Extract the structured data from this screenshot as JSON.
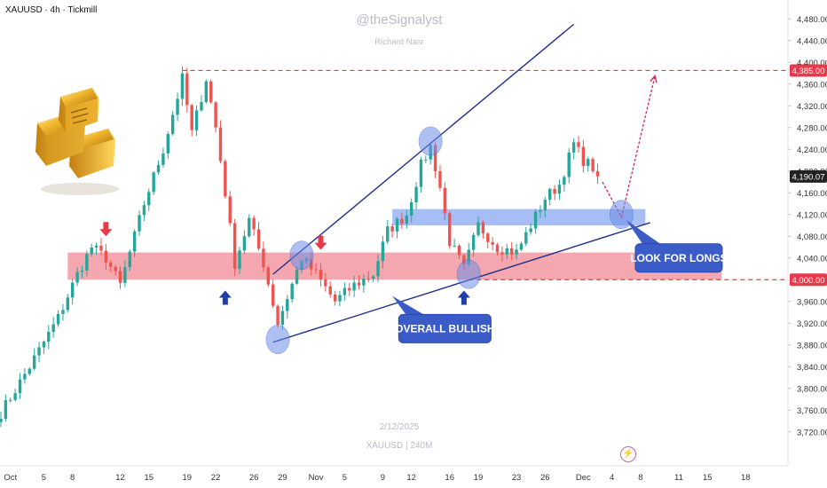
{
  "header": {
    "symbol_line": "XAUUSD · 4h · Tickmill",
    "watermark_author": "@theSignalyst",
    "watermark_name": "Richard Nasr",
    "watermark_date": "2/12/2025",
    "watermark_symbol": "XAUUSD | 240M"
  },
  "chart_data": {
    "type": "candlestick",
    "x_ticks": [
      {
        "label": "Oct",
        "idx": 2
      },
      {
        "label": "5",
        "idx": 9
      },
      {
        "label": "8",
        "idx": 15
      },
      {
        "label": "12",
        "idx": 25
      },
      {
        "label": "15",
        "idx": 31
      },
      {
        "label": "19",
        "idx": 39
      },
      {
        "label": "22",
        "idx": 45
      },
      {
        "label": "26",
        "idx": 53
      },
      {
        "label": "29",
        "idx": 59
      },
      {
        "label": "Nov",
        "idx": 66
      },
      {
        "label": "5",
        "idx": 72
      },
      {
        "label": "9",
        "idx": 80
      },
      {
        "label": "12",
        "idx": 86
      },
      {
        "label": "16",
        "idx": 94
      },
      {
        "label": "19",
        "idx": 100
      },
      {
        "label": "23",
        "idx": 108
      },
      {
        "label": "26",
        "idx": 114
      },
      {
        "label": "Dec",
        "idx": 122
      },
      {
        "label": "4",
        "idx": 128
      },
      {
        "label": "8",
        "idx": 134
      },
      {
        "label": "11",
        "idx": 142
      },
      {
        "label": "15",
        "idx": 148
      },
      {
        "label": "18",
        "idx": 156
      }
    ],
    "y_ticks": [
      3720,
      3760,
      3800,
      3840,
      3880,
      3920,
      3960,
      4040,
      4080,
      4120,
      4160,
      4200,
      4240,
      4280,
      4320,
      4360,
      4400,
      4440,
      4480
    ],
    "ylim": [
      3705,
      4500
    ],
    "price_badges": [
      {
        "value": 4385,
        "label": "4,385.00",
        "color": "#e8394b"
      },
      {
        "value": 4190.07,
        "label": "4,190.07",
        "color": "#222222"
      },
      {
        "value": 4000,
        "label": "4,000.00",
        "color": "#e8394b"
      }
    ],
    "last_price": 4190.07,
    "resistance_level": 4385,
    "support_level": 4000,
    "zones": [
      {
        "kind": "demand",
        "from_idx": 14,
        "to_idx": 151,
        "low": 4000,
        "high": 4050,
        "color": "#f08a93"
      },
      {
        "kind": "demand",
        "from_idx": 82,
        "to_idx": 135,
        "low": 4100,
        "high": 4130,
        "color": "#8aa8f0"
      }
    ],
    "trendlines": [
      {
        "kind": "lower",
        "from": {
          "idx": 57,
          "price": 3885
        },
        "to": {
          "idx": 136,
          "price": 4105
        }
      },
      {
        "kind": "upper",
        "from": {
          "idx": 57,
          "price": 4010
        },
        "to": {
          "idx": 120,
          "price": 4470
        }
      }
    ],
    "projection": [
      {
        "idx": 126,
        "price": 4180
      },
      {
        "idx": 130,
        "price": 4115
      },
      {
        "idx": 137,
        "price": 4375
      }
    ],
    "callouts": [
      {
        "text": "OVERALL BULLISH",
        "idx": 93,
        "price": 3910
      },
      {
        "text": "LOOK FOR LONGS",
        "idx": 142,
        "price": 4040
      }
    ],
    "down_arrows": [
      {
        "idx": 22,
        "price": 4080
      },
      {
        "idx": 67,
        "price": 4055
      }
    ],
    "up_arrows": [
      {
        "idx": 47,
        "price": 3980
      },
      {
        "idx": 97,
        "price": 3980
      }
    ],
    "circles": [
      {
        "idx": 58,
        "price": 3890
      },
      {
        "idx": 63,
        "price": 4045
      },
      {
        "idx": 90,
        "price": 4255
      },
      {
        "idx": 98,
        "price": 4010
      },
      {
        "idx": 130,
        "price": 4120
      }
    ],
    "anchors": [
      {
        "idx": 0,
        "price": 3755
      },
      {
        "idx": 6,
        "price": 3840
      },
      {
        "idx": 12,
        "price": 3930
      },
      {
        "idx": 16,
        "price": 4010
      },
      {
        "idx": 19,
        "price": 4060
      },
      {
        "idx": 22,
        "price": 4040
      },
      {
        "idx": 25,
        "price": 3990
      },
      {
        "idx": 30,
        "price": 4140
      },
      {
        "idx": 34,
        "price": 4240
      },
      {
        "idx": 38,
        "price": 4370
      },
      {
        "idx": 40,
        "price": 4270
      },
      {
        "idx": 43,
        "price": 4370
      },
      {
        "idx": 45,
        "price": 4280
      },
      {
        "idx": 47,
        "price": 4160
      },
      {
        "idx": 49,
        "price": 4030
      },
      {
        "idx": 52,
        "price": 4110
      },
      {
        "idx": 55,
        "price": 4030
      },
      {
        "idx": 58,
        "price": 3920
      },
      {
        "idx": 63,
        "price": 4040
      },
      {
        "idx": 66,
        "price": 4010
      },
      {
        "idx": 70,
        "price": 3960
      },
      {
        "idx": 74,
        "price": 3990
      },
      {
        "idx": 78,
        "price": 4010
      },
      {
        "idx": 81,
        "price": 4090
      },
      {
        "idx": 85,
        "price": 4120
      },
      {
        "idx": 88,
        "price": 4210
      },
      {
        "idx": 90,
        "price": 4245
      },
      {
        "idx": 92,
        "price": 4170
      },
      {
        "idx": 94,
        "price": 4070
      },
      {
        "idx": 97,
        "price": 4020
      },
      {
        "idx": 100,
        "price": 4100
      },
      {
        "idx": 104,
        "price": 4060
      },
      {
        "idx": 108,
        "price": 4050
      },
      {
        "idx": 111,
        "price": 4100
      },
      {
        "idx": 114,
        "price": 4150
      },
      {
        "idx": 117,
        "price": 4175
      },
      {
        "idx": 120,
        "price": 4250
      },
      {
        "idx": 122,
        "price": 4220
      },
      {
        "idx": 125,
        "price": 4200
      }
    ]
  }
}
